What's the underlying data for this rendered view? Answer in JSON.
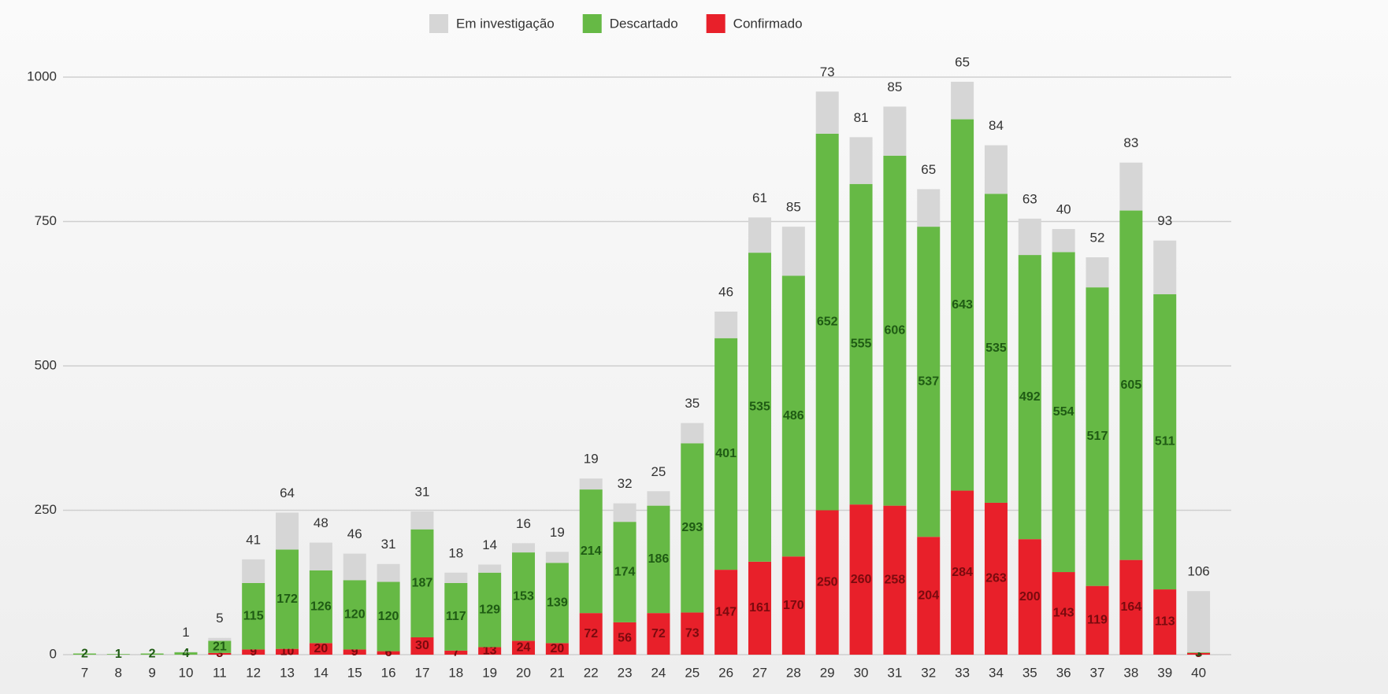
{
  "chart_data": {
    "type": "stacked_bar",
    "categories": [
      "7",
      "8",
      "9",
      "10",
      "11",
      "12",
      "13",
      "14",
      "15",
      "16",
      "17",
      "18",
      "19",
      "20",
      "21",
      "22",
      "23",
      "24",
      "25",
      "26",
      "27",
      "28",
      "29",
      "30",
      "31",
      "32",
      "33",
      "34",
      "35",
      "36",
      "37",
      "38",
      "39",
      "40"
    ],
    "series": [
      {
        "name": "Confirmado",
        "color": "#e8202a",
        "values": [
          null,
          null,
          null,
          null,
          3,
          9,
          10,
          20,
          9,
          6,
          30,
          7,
          13,
          24,
          20,
          72,
          56,
          72,
          73,
          147,
          161,
          170,
          250,
          260,
          258,
          204,
          284,
          263,
          200,
          143,
          119,
          164,
          113,
          3
        ]
      },
      {
        "name": "Descartado",
        "color": "#66b945",
        "values": [
          2,
          1,
          2,
          4,
          21,
          115,
          172,
          126,
          120,
          120,
          187,
          117,
          129,
          153,
          139,
          214,
          174,
          186,
          293,
          401,
          535,
          486,
          652,
          555,
          606,
          537,
          643,
          535,
          492,
          554,
          517,
          605,
          511,
          1
        ]
      },
      {
        "name": "Em investigação",
        "color": "#d6d6d6",
        "values": [
          null,
          null,
          null,
          1,
          5,
          41,
          64,
          48,
          46,
          31,
          31,
          18,
          14,
          16,
          19,
          19,
          32,
          25,
          35,
          46,
          61,
          85,
          73,
          81,
          85,
          65,
          65,
          84,
          63,
          40,
          52,
          83,
          93,
          106
        ]
      }
    ],
    "legend_order": [
      2,
      1,
      0
    ],
    "ylim": [
      0,
      1000
    ],
    "yticks": [
      0,
      250,
      500,
      750,
      1000
    ],
    "grid": true
  }
}
